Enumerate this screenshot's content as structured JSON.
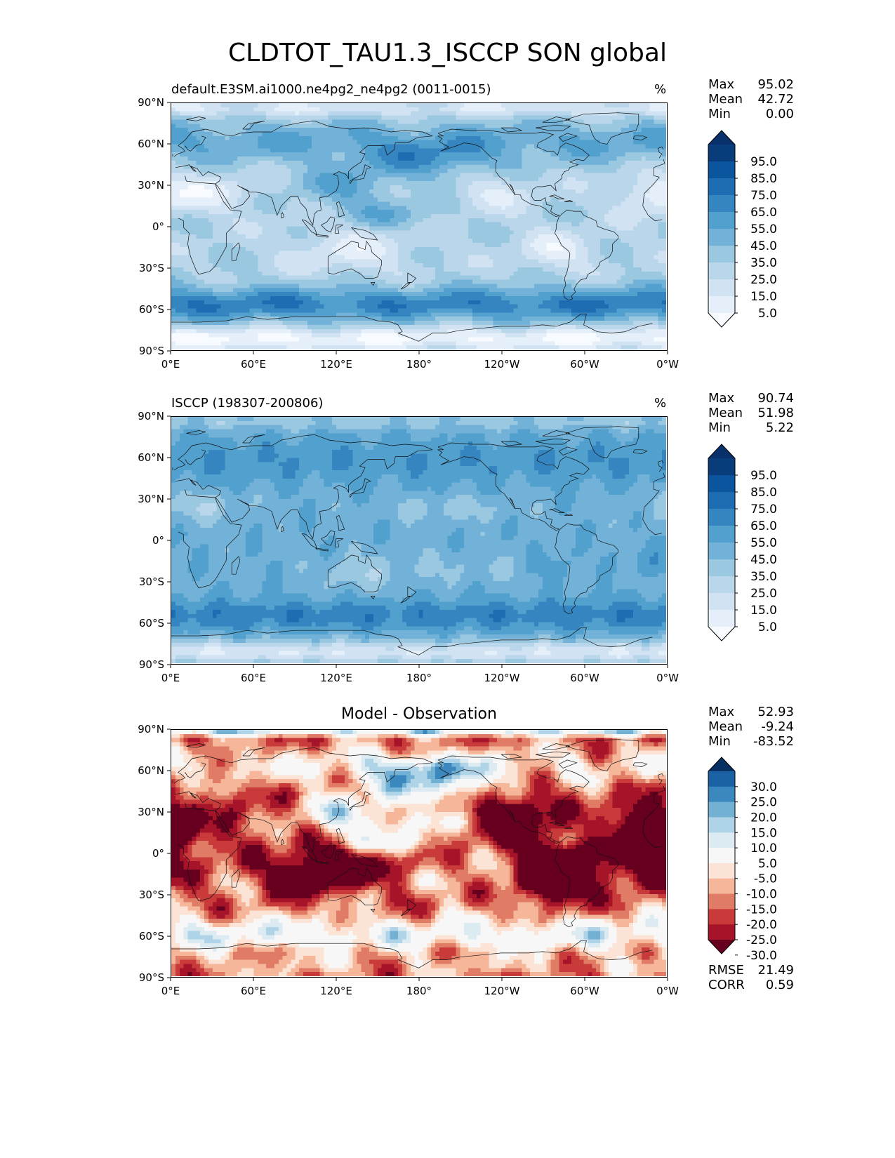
{
  "figure_title": "CLDTOT_TAU1.3_ISCCP SON global",
  "panels": [
    {
      "title": "default.E3SM.ai1000.ne4pg2_ne4pg2 (0011-0015)",
      "units": "%",
      "stats": {
        "max_label": "Max",
        "max": "95.02",
        "mean_label": "Mean",
        "mean": "42.72",
        "min_label": "Min",
        "min": "0.00"
      },
      "colorbar_labels": [
        "95.0",
        "85.0",
        "75.0",
        "65.0",
        "55.0",
        "45.0",
        "35.0",
        "25.0",
        "15.0",
        "5.0"
      ]
    },
    {
      "title": "ISCCP (198307-200806)",
      "units": "%",
      "stats": {
        "max_label": "Max",
        "max": "90.74",
        "mean_label": "Mean",
        "mean": "51.98",
        "min_label": "Min",
        "min": "5.22"
      },
      "colorbar_labels": [
        "95.0",
        "85.0",
        "75.0",
        "65.0",
        "55.0",
        "45.0",
        "35.0",
        "25.0",
        "15.0",
        "5.0"
      ]
    },
    {
      "title": "Model - Observation",
      "units": "",
      "stats": {
        "max_label": "Max",
        "max": "52.93",
        "mean_label": "Mean",
        "mean": "-9.24",
        "min_label": "Min",
        "min": "-83.52"
      },
      "colorbar_labels": [
        "30.0",
        "25.0",
        "20.0",
        "15.0",
        "10.0",
        "5.0",
        "-5.0",
        "-10.0",
        "-15.0",
        "-20.0",
        "-25.0",
        "-30.0"
      ],
      "rmse_label": "RMSE",
      "rmse": "21.49",
      "corr_label": "CORR",
      "corr": "0.59"
    }
  ],
  "lat_ticks": [
    "90°N",
    "60°N",
    "30°N",
    "0°",
    "30°S",
    "60°S",
    "90°S"
  ],
  "lon_ticks": [
    "0°E",
    "60°E",
    "120°E",
    "180°",
    "120°W",
    "60°W",
    "0°W"
  ],
  "colors": {
    "blues": [
      "#f7fbff",
      "#e4eff9",
      "#d1e3f3",
      "#bad6eb",
      "#9ac8e0",
      "#73b2d8",
      "#52a0cd",
      "#3585c0",
      "#1e6db2",
      "#0b559f",
      "#083c7b",
      "#08306b"
    ],
    "diverging": [
      "#67001f",
      "#a51429",
      "#c93b3b",
      "#e07b65",
      "#f5b69a",
      "#fbe3d6",
      "#f7f7f7",
      "#dceaf2",
      "#b0d4e7",
      "#73b1d4",
      "#3b88be",
      "#1b62a4",
      "#053061"
    ]
  }
}
